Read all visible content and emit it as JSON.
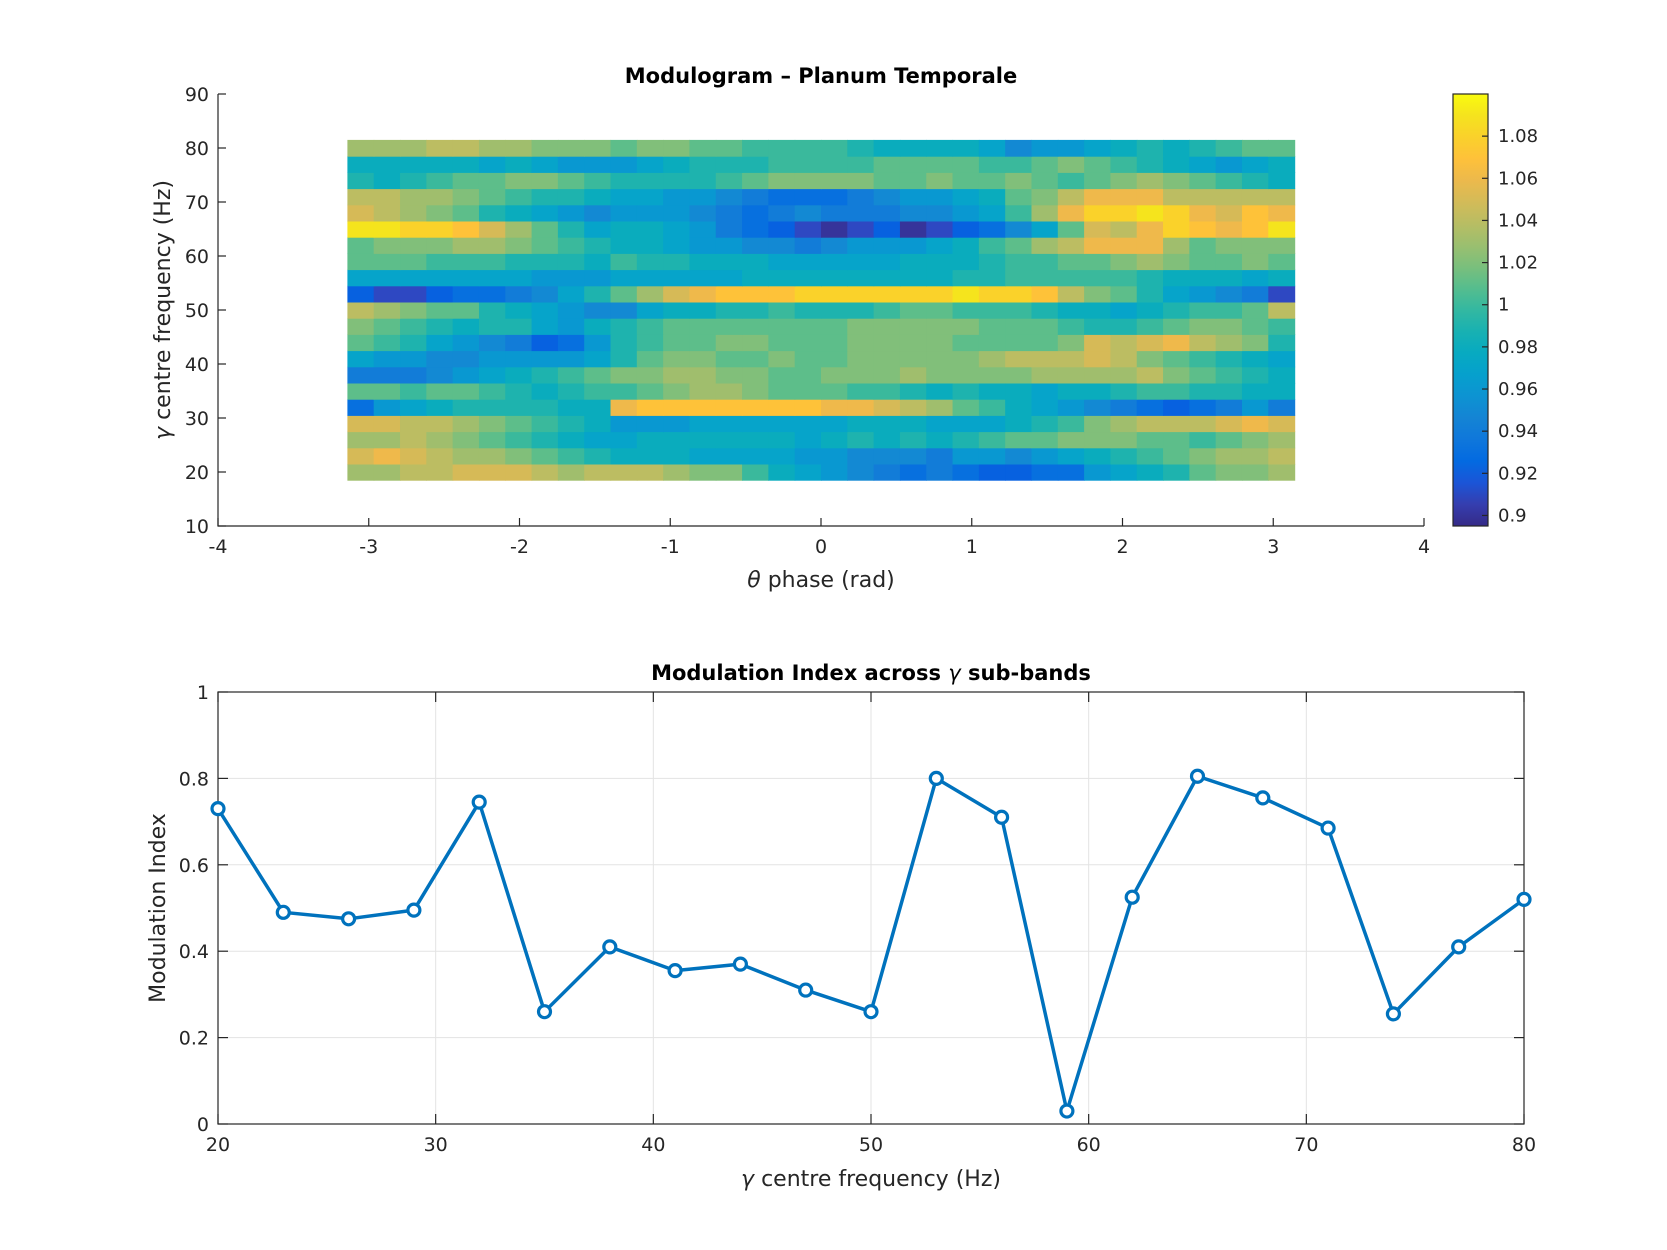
{
  "chart_data": [
    {
      "type": "heatmap",
      "title": "Modulogram – Planum Temporale",
      "xlabel_symbol": "θ",
      "xlabel": "phase (rad)",
      "ylabel_symbol": "γ",
      "ylabel": "centre frequency (Hz)",
      "xlim": [
        -4,
        4
      ],
      "ylim": [
        10,
        90
      ],
      "xticks": [
        "-4",
        "-3",
        "-2",
        "-1",
        "0",
        "1",
        "2",
        "3",
        "4"
      ],
      "yticks": [
        "10",
        "20",
        "30",
        "40",
        "50",
        "60",
        "70",
        "80",
        "90"
      ],
      "x_range": [
        -3.1416,
        3.1416
      ],
      "y_centers": [
        20,
        23,
        26,
        29,
        32,
        35,
        38,
        41,
        44,
        47,
        50,
        53,
        56,
        59,
        62,
        65,
        68,
        71,
        74,
        77,
        80
      ],
      "colormap": "parula",
      "clim": [
        0.895,
        1.1
      ],
      "colorbar_ticks": [
        "0.9",
        "0.92",
        "0.94",
        "0.96",
        "0.98",
        "1",
        "1.02",
        "1.04",
        "1.06",
        "1.08"
      ],
      "grid": false,
      "values": [
        [
          1.03,
          1.03,
          1.04,
          1.04,
          1.05,
          1.05,
          1.05,
          1.04,
          1.03,
          1.04,
          1.04,
          1.04,
          1.03,
          1.02,
          1.02,
          1.0,
          0.98,
          0.97,
          0.96,
          0.95,
          0.94,
          0.93,
          0.94,
          0.93,
          0.92,
          0.92,
          0.93,
          0.93,
          0.96,
          0.97,
          0.98,
          0.99,
          1.01,
          1.02,
          1.02,
          1.03
        ],
        [
          1.05,
          1.06,
          1.05,
          1.04,
          1.03,
          1.03,
          1.02,
          1.01,
          1.0,
          0.99,
          0.98,
          0.98,
          0.98,
          0.97,
          0.97,
          0.97,
          0.97,
          0.96,
          0.96,
          0.95,
          0.95,
          0.95,
          0.94,
          0.96,
          0.96,
          0.95,
          0.96,
          0.97,
          0.98,
          0.99,
          1.0,
          1.01,
          1.02,
          1.03,
          1.03,
          1.04
        ],
        [
          1.03,
          1.03,
          1.04,
          1.03,
          1.02,
          1.01,
          1.0,
          0.99,
          0.98,
          0.97,
          0.97,
          0.98,
          0.98,
          0.98,
          0.98,
          0.98,
          0.98,
          0.97,
          0.98,
          0.99,
          0.98,
          0.99,
          0.98,
          0.99,
          1.0,
          1.01,
          1.01,
          1.02,
          1.02,
          1.02,
          1.01,
          1.01,
          1.0,
          1.01,
          1.02,
          1.03
        ],
        [
          1.05,
          1.05,
          1.04,
          1.04,
          1.03,
          1.02,
          1.01,
          1.0,
          0.99,
          0.98,
          0.96,
          0.96,
          0.96,
          0.97,
          0.97,
          0.97,
          0.97,
          0.97,
          0.97,
          0.98,
          0.98,
          0.98,
          0.97,
          0.97,
          0.97,
          0.98,
          0.99,
          1.0,
          1.02,
          1.03,
          1.04,
          1.04,
          1.04,
          1.05,
          1.06,
          1.05
        ],
        [
          0.93,
          0.96,
          0.97,
          0.98,
          0.99,
          0.99,
          0.99,
          0.99,
          0.98,
          0.98,
          1.06,
          1.07,
          1.07,
          1.07,
          1.07,
          1.07,
          1.07,
          1.07,
          1.06,
          1.06,
          1.05,
          1.04,
          1.03,
          1.01,
          1.0,
          0.98,
          0.97,
          0.96,
          0.95,
          0.94,
          0.93,
          0.92,
          0.93,
          0.94,
          0.96,
          0.94
        ],
        [
          1.01,
          1.01,
          1.0,
          1.01,
          1.01,
          1.0,
          0.99,
          0.98,
          0.99,
          1.0,
          1.0,
          1.01,
          1.02,
          1.03,
          1.03,
          1.02,
          1.01,
          1.01,
          1.01,
          1.0,
          1.0,
          0.99,
          0.98,
          0.99,
          0.98,
          0.98,
          0.97,
          0.98,
          0.98,
          0.99,
          1.0,
          1.0,
          0.99,
          0.99,
          0.98,
          0.98
        ],
        [
          0.94,
          0.94,
          0.94,
          0.95,
          0.96,
          0.97,
          0.98,
          0.99,
          1.0,
          1.01,
          1.02,
          1.02,
          1.03,
          1.03,
          1.02,
          1.02,
          1.01,
          1.01,
          1.02,
          1.02,
          1.02,
          1.03,
          1.02,
          1.02,
          1.02,
          1.02,
          1.03,
          1.03,
          1.03,
          1.03,
          1.04,
          1.02,
          1.01,
          1.0,
          0.99,
          0.98
        ],
        [
          0.97,
          0.96,
          0.96,
          0.95,
          0.95,
          0.96,
          0.96,
          0.96,
          0.96,
          0.97,
          0.99,
          1.01,
          1.02,
          1.02,
          1.01,
          1.01,
          1.02,
          1.01,
          1.01,
          1.02,
          1.02,
          1.02,
          1.02,
          1.02,
          1.03,
          1.04,
          1.04,
          1.04,
          1.05,
          1.04,
          1.02,
          1.01,
          1.0,
          0.99,
          0.98,
          0.97
        ],
        [
          1.01,
          1.0,
          0.99,
          0.97,
          0.96,
          0.95,
          0.94,
          0.92,
          0.93,
          0.96,
          0.99,
          1.0,
          1.01,
          1.01,
          1.02,
          1.02,
          1.01,
          1.01,
          1.01,
          1.02,
          1.02,
          1.02,
          1.02,
          1.01,
          1.01,
          1.01,
          1.01,
          1.02,
          1.05,
          1.04,
          1.05,
          1.06,
          1.04,
          1.03,
          1.02,
          0.99
        ],
        [
          1.02,
          1.01,
          1.0,
          0.99,
          0.98,
          0.99,
          0.99,
          0.97,
          0.96,
          0.98,
          0.99,
          1.0,
          1.01,
          1.01,
          1.01,
          1.01,
          1.01,
          1.01,
          1.01,
          1.02,
          1.02,
          1.02,
          1.02,
          1.02,
          1.01,
          1.01,
          1.01,
          1.0,
          0.99,
          0.99,
          1.0,
          1.01,
          1.02,
          1.02,
          1.01,
          1.0
        ],
        [
          1.04,
          1.03,
          1.02,
          1.01,
          1.01,
          0.99,
          0.98,
          0.97,
          0.96,
          0.95,
          0.95,
          0.97,
          0.98,
          0.98,
          0.99,
          0.99,
          1.0,
          0.99,
          0.99,
          0.99,
          1.0,
          1.01,
          1.01,
          1.0,
          1.0,
          1.0,
          0.99,
          0.98,
          0.98,
          0.97,
          0.98,
          0.99,
          1.0,
          1.0,
          1.01,
          1.04
        ],
        [
          0.92,
          0.91,
          0.91,
          0.92,
          0.93,
          0.93,
          0.94,
          0.95,
          0.97,
          0.99,
          1.01,
          1.03,
          1.05,
          1.06,
          1.07,
          1.07,
          1.07,
          1.08,
          1.08,
          1.08,
          1.08,
          1.08,
          1.08,
          1.09,
          1.08,
          1.08,
          1.07,
          1.04,
          1.02,
          1.01,
          0.99,
          0.97,
          0.96,
          0.95,
          0.94,
          0.91
        ],
        [
          0.97,
          0.97,
          0.97,
          0.97,
          0.97,
          0.97,
          0.97,
          0.96,
          0.96,
          0.96,
          0.97,
          0.97,
          0.97,
          0.97,
          0.97,
          0.98,
          0.98,
          0.98,
          0.98,
          0.98,
          0.98,
          0.98,
          0.98,
          0.99,
          0.99,
          1.0,
          1.0,
          1.0,
          1.0,
          1.0,
          0.99,
          0.98,
          0.98,
          0.98,
          0.97,
          0.98
        ],
        [
          1.01,
          1.01,
          1.01,
          1.0,
          1.0,
          1.0,
          0.99,
          0.99,
          0.99,
          0.98,
          1.0,
          0.99,
          0.99,
          0.98,
          0.98,
          0.98,
          0.97,
          0.97,
          0.97,
          0.97,
          0.97,
          0.98,
          0.98,
          0.98,
          0.99,
          1.0,
          1.0,
          1.01,
          1.01,
          1.02,
          1.03,
          1.02,
          1.01,
          1.01,
          1.02,
          1.01
        ],
        [
          1.01,
          1.02,
          1.02,
          1.02,
          1.03,
          1.03,
          1.02,
          1.01,
          1.0,
          0.99,
          0.98,
          0.98,
          0.97,
          0.96,
          0.96,
          0.95,
          0.95,
          0.94,
          0.95,
          0.96,
          0.96,
          0.96,
          0.97,
          0.98,
          1.0,
          1.01,
          1.03,
          1.04,
          1.06,
          1.06,
          1.06,
          1.03,
          1.01,
          1.02,
          1.02,
          1.02
        ],
        [
          1.09,
          1.09,
          1.08,
          1.08,
          1.07,
          1.05,
          1.03,
          1.01,
          0.99,
          0.97,
          0.98,
          0.98,
          0.97,
          0.96,
          0.94,
          0.93,
          0.92,
          0.91,
          0.9,
          0.91,
          0.92,
          0.9,
          0.91,
          0.92,
          0.93,
          0.95,
          0.97,
          1.01,
          1.05,
          1.04,
          1.06,
          1.08,
          1.07,
          1.06,
          1.07,
          1.09
        ],
        [
          1.05,
          1.04,
          1.03,
          1.02,
          1.01,
          0.99,
          0.98,
          0.97,
          0.96,
          0.95,
          0.96,
          0.96,
          0.96,
          0.95,
          0.94,
          0.93,
          0.94,
          0.95,
          0.94,
          0.94,
          0.94,
          0.95,
          0.95,
          0.96,
          0.97,
          1.0,
          1.03,
          1.06,
          1.08,
          1.08,
          1.09,
          1.08,
          1.06,
          1.05,
          1.07,
          1.06
        ],
        [
          1.04,
          1.04,
          1.03,
          1.03,
          1.02,
          1.01,
          1.0,
          0.99,
          0.99,
          0.98,
          0.97,
          0.97,
          0.96,
          0.96,
          0.95,
          0.94,
          0.93,
          0.93,
          0.93,
          0.94,
          0.95,
          0.96,
          0.96,
          0.97,
          0.98,
          1.01,
          1.02,
          1.04,
          1.06,
          1.06,
          1.06,
          1.04,
          1.04,
          1.04,
          1.04,
          1.04
        ],
        [
          0.99,
          0.98,
          0.99,
          1.0,
          1.01,
          1.01,
          1.02,
          1.02,
          1.01,
          1.0,
          0.99,
          0.99,
          0.99,
          0.99,
          1.0,
          1.01,
          1.02,
          1.02,
          1.02,
          1.02,
          1.01,
          1.01,
          1.02,
          1.01,
          1.01,
          1.02,
          1.01,
          1.0,
          1.01,
          1.02,
          1.03,
          1.02,
          1.01,
          1.0,
          0.99,
          0.98
        ],
        [
          0.98,
          0.98,
          0.98,
          0.98,
          0.98,
          0.97,
          0.98,
          0.97,
          0.96,
          0.96,
          0.96,
          0.97,
          0.98,
          0.99,
          0.99,
          0.99,
          1.0,
          1.0,
          1.0,
          1.0,
          1.01,
          1.01,
          1.01,
          1.01,
          1.0,
          1.0,
          1.01,
          1.02,
          1.01,
          1.0,
          0.99,
          0.98,
          0.97,
          0.96,
          0.97,
          0.98
        ],
        [
          1.03,
          1.03,
          1.03,
          1.04,
          1.04,
          1.03,
          1.03,
          1.02,
          1.02,
          1.02,
          1.01,
          1.02,
          1.02,
          1.01,
          1.01,
          1.0,
          1.0,
          1.0,
          1.0,
          0.99,
          0.98,
          0.98,
          0.98,
          0.98,
          0.97,
          0.95,
          0.96,
          0.96,
          0.97,
          0.98,
          0.99,
          0.98,
          0.99,
          1.0,
          1.01,
          1.01
        ]
      ]
    },
    {
      "type": "line",
      "title_prefix": "Modulation Index across",
      "title_symbol": "γ",
      "title_suffix": "sub-bands",
      "xlabel_symbol": "γ",
      "xlabel": "centre frequency (Hz)",
      "ylabel": "Modulation Index",
      "xlim": [
        20,
        80
      ],
      "ylim": [
        0,
        1
      ],
      "xticks": [
        "20",
        "30",
        "40",
        "50",
        "60",
        "70",
        "80"
      ],
      "yticks": [
        "0",
        "0.2",
        "0.4",
        "0.6",
        "0.8",
        "1"
      ],
      "grid": true,
      "marker": "circle",
      "color": "#0072BD",
      "x": [
        20,
        23,
        26,
        29,
        32,
        35,
        38,
        41,
        44,
        47,
        50,
        53,
        56,
        59,
        62,
        65,
        68,
        71,
        74,
        77,
        80
      ],
      "y": [
        0.73,
        0.49,
        0.475,
        0.495,
        0.745,
        0.26,
        0.41,
        0.355,
        0.37,
        0.31,
        0.26,
        0.8,
        0.71,
        0.03,
        0.525,
        0.805,
        0.755,
        0.685,
        0.255,
        0.41,
        0.52
      ]
    }
  ]
}
